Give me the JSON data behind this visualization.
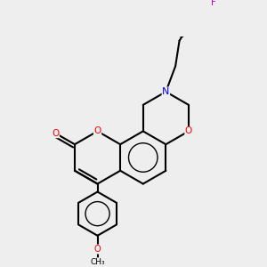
{
  "bg_color": "#eeeeee",
  "bond_color": "#000000",
  "bond_lw": 1.5,
  "figsize": [
    3.0,
    3.0
  ],
  "dpi": 100,
  "xlim": [
    0.3,
    2.9
  ],
  "ylim": [
    0.2,
    3.0
  ]
}
